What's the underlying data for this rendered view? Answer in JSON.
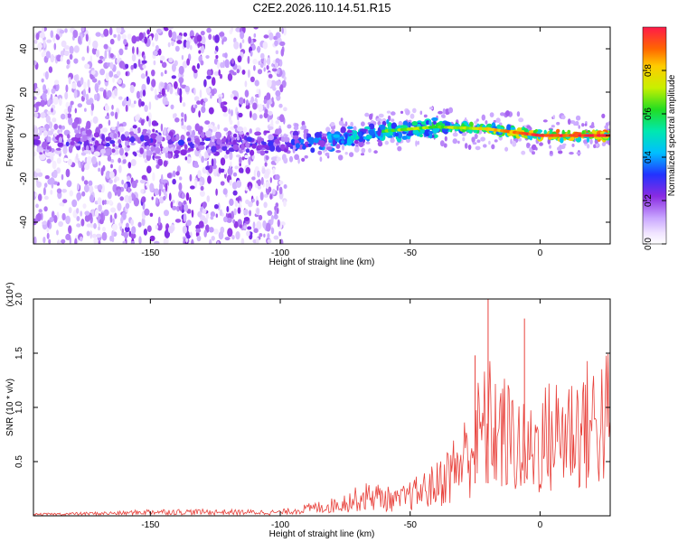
{
  "title": "C2E2.2026.110.14.51.R15",
  "chart_data": [
    {
      "type": "heatmap",
      "xlabel": "Height of straight line (km)",
      "ylabel": "Frequency (Hz)",
      "xlim": [
        -195,
        27
      ],
      "ylim": [
        -50,
        50
      ],
      "xticks": [
        -150,
        -100,
        -50,
        0
      ],
      "yticks": [
        -40,
        -20,
        0,
        20,
        40
      ],
      "colorbar": {
        "label": "Normalized spectral amplitude",
        "range": [
          0,
          1
        ],
        "ticks": [
          0.0,
          0.2,
          0.4,
          0.6,
          0.8
        ]
      },
      "ridge": [
        {
          "x": -190,
          "y": -4,
          "amp": 0.25
        },
        {
          "x": -150,
          "y": -3,
          "amp": 0.3
        },
        {
          "x": -100,
          "y": -4,
          "amp": 0.3
        },
        {
          "x": -80,
          "y": -2,
          "amp": 0.45
        },
        {
          "x": -60,
          "y": 2,
          "amp": 0.55
        },
        {
          "x": -40,
          "y": 4,
          "amp": 0.6
        },
        {
          "x": -20,
          "y": 3,
          "amp": 0.7
        },
        {
          "x": 0,
          "y": 0,
          "amp": 0.85
        },
        {
          "x": 25,
          "y": 0,
          "amp": 0.9
        }
      ]
    },
    {
      "type": "line",
      "xlabel": "Height of straight line (km)",
      "ylabel": "SNR (10 * v/v)",
      "scale_label": "(x10⁴)",
      "xlim": [
        -195,
        27
      ],
      "ylim": [
        0,
        2.0
      ],
      "xticks": [
        -150,
        -100,
        -50,
        0
      ],
      "yticks": [
        0.5,
        1.0,
        1.5,
        2.0
      ],
      "series": [
        {
          "name": "SNR",
          "color": "#e8423c",
          "envelope": [
            {
              "x": -195,
              "y": 0.02
            },
            {
              "x": -160,
              "y": 0.04
            },
            {
              "x": -150,
              "y": 0.06
            },
            {
              "x": -100,
              "y": 0.05
            },
            {
              "x": -80,
              "y": 0.15
            },
            {
              "x": -65,
              "y": 0.3
            },
            {
              "x": -55,
              "y": 0.22
            },
            {
              "x": -40,
              "y": 0.45
            },
            {
              "x": -30,
              "y": 0.8
            },
            {
              "x": -25,
              "y": 1.1
            },
            {
              "x": -20,
              "y": 1.35
            },
            {
              "x": -10,
              "y": 1.1
            },
            {
              "x": -5,
              "y": 0.9
            },
            {
              "x": 0,
              "y": 1.1
            },
            {
              "x": 10,
              "y": 1.25
            },
            {
              "x": 20,
              "y": 1.35
            },
            {
              "x": 27,
              "y": 1.45
            }
          ],
          "spikes": [
            {
              "x": -25,
              "y": 1.48
            },
            {
              "x": -20,
              "y": 2.0
            },
            {
              "x": -6,
              "y": 1.82
            }
          ]
        }
      ]
    }
  ]
}
